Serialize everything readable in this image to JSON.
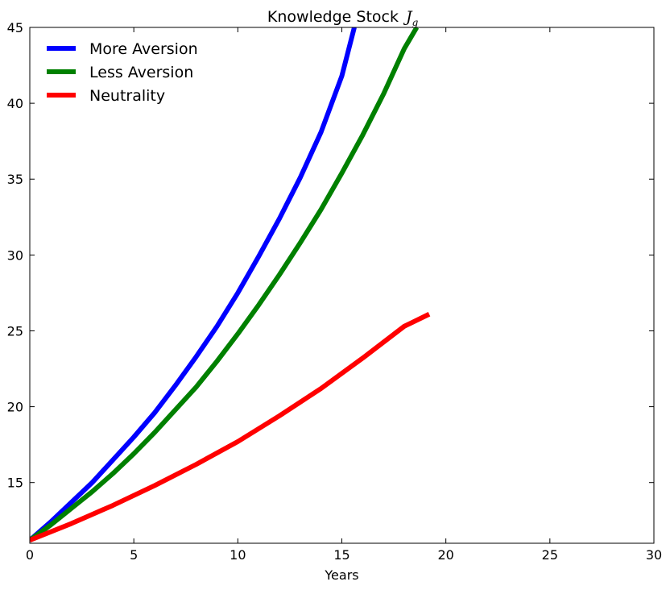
{
  "chart_data": {
    "type": "line",
    "title": "Knowledge Stock",
    "title_symbol": "J",
    "title_symbol_sub": "g",
    "xlabel": "Years",
    "ylabel": "",
    "xlim": [
      0,
      30
    ],
    "ylim": [
      11,
      45
    ],
    "xticks": [
      0,
      5,
      10,
      15,
      20,
      25,
      30
    ],
    "yticks": [
      15,
      20,
      25,
      30,
      35,
      40,
      45
    ],
    "grid": false,
    "legend_position": "top-left",
    "series": [
      {
        "name": "More Aversion",
        "color": "#0000ff",
        "x": [
          0,
          1,
          2,
          3,
          4,
          5,
          6,
          7,
          8,
          9,
          10,
          11,
          12,
          13,
          14,
          15,
          15.6
        ],
        "y": [
          11.2,
          12.4,
          13.7,
          15.0,
          16.5,
          18.0,
          19.6,
          21.4,
          23.3,
          25.3,
          27.5,
          29.9,
          32.4,
          35.1,
          38.1,
          41.8,
          45.0
        ]
      },
      {
        "name": "Less Aversion",
        "color": "#008000",
        "x": [
          0,
          1,
          2,
          3,
          4,
          5,
          6,
          7,
          8,
          9,
          10,
          11,
          12,
          13,
          14,
          15,
          16,
          17,
          18,
          18.6
        ],
        "y": [
          11.2,
          12.2,
          13.3,
          14.4,
          15.6,
          16.9,
          18.3,
          19.8,
          21.3,
          23.0,
          24.8,
          26.7,
          28.7,
          30.8,
          33.0,
          35.4,
          37.9,
          40.6,
          43.6,
          45.0
        ]
      },
      {
        "name": "Neutrality",
        "color": "#ff0000",
        "x": [
          0,
          2,
          4,
          6,
          8,
          10,
          12,
          14,
          16,
          18,
          19.2
        ],
        "y": [
          11.2,
          12.3,
          13.5,
          14.8,
          16.2,
          17.7,
          19.4,
          21.2,
          23.2,
          25.3,
          26.1
        ]
      }
    ]
  }
}
